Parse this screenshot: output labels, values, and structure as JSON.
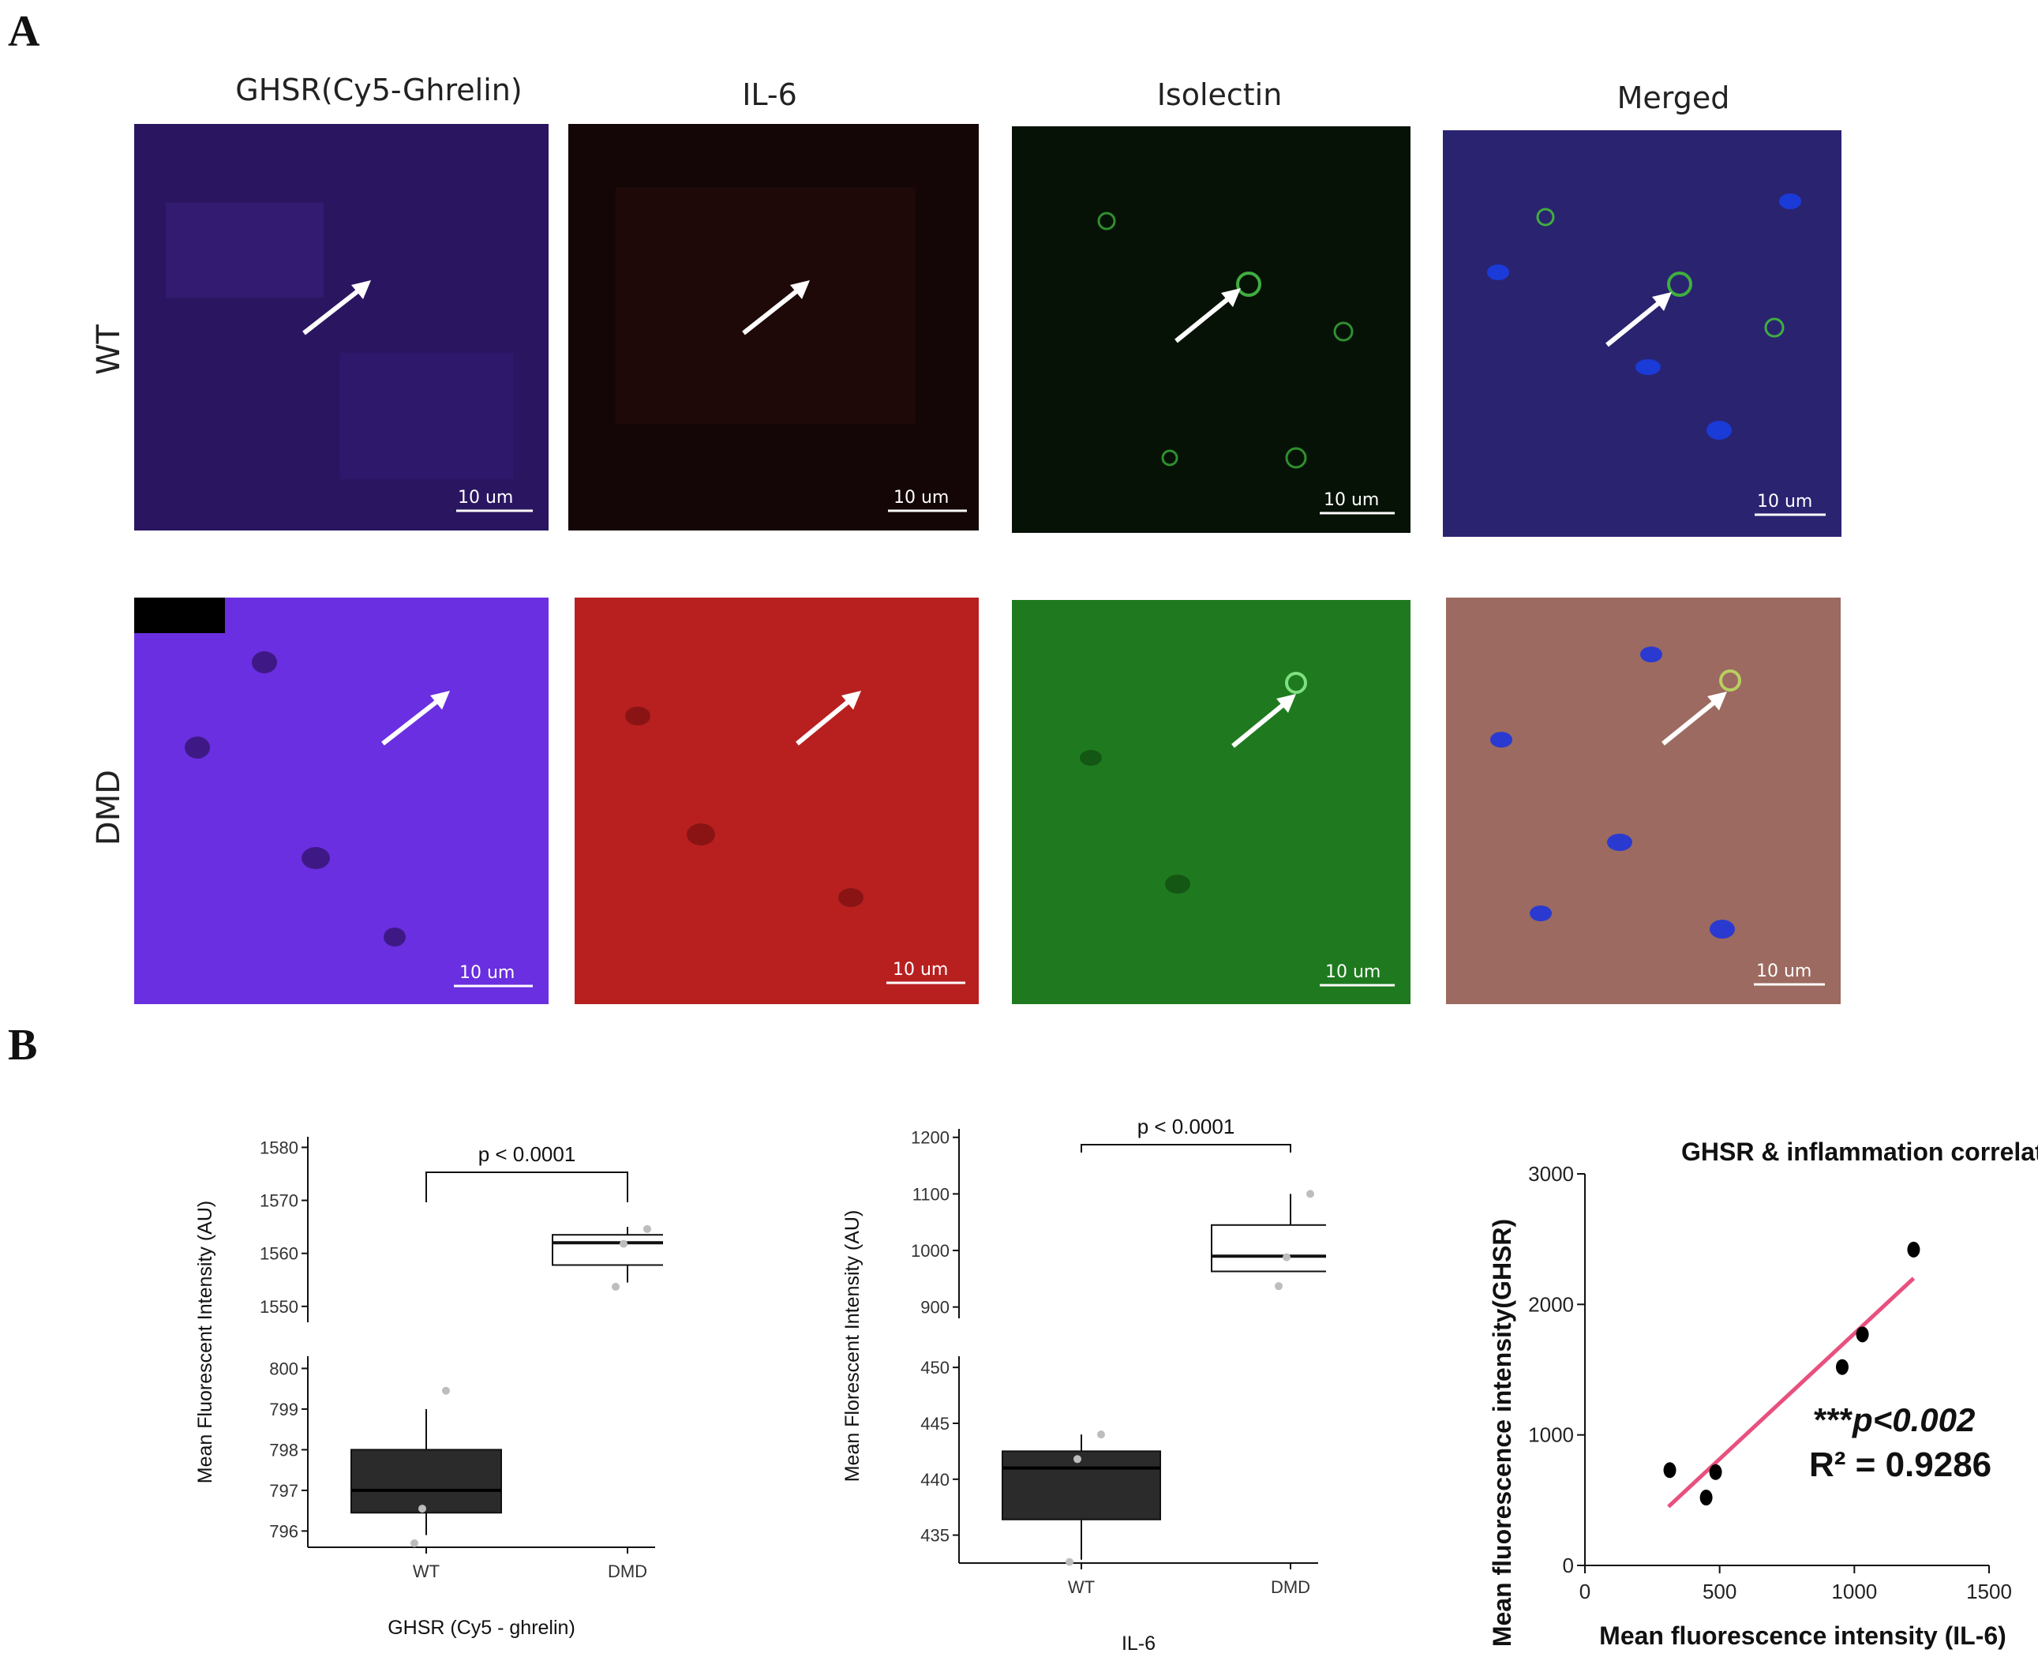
{
  "panel_a": {
    "letter": "A",
    "column_titles": [
      "GHSR(Cy5-Ghrelin)",
      "IL-6",
      "Isolectin",
      "Merged"
    ],
    "row_labels": [
      "WT",
      "DMD"
    ],
    "scale_bar_label": "10 um",
    "tile_colors": {
      "wt": [
        "#2a1660",
        "#140606",
        "#071207",
        "#2a2370"
      ],
      "dmd": [
        "#6a2fe0",
        "#b82020",
        "#1f7a1f",
        "#9c6a60"
      ]
    }
  },
  "panel_b": {
    "letter": "B"
  },
  "chart_data": [
    {
      "type": "box",
      "xlabel": "GHSR (Cy5 - ghrelin)",
      "ylabel": "Mean Fluorescent Intensity (AU)",
      "categories": [
        "WT",
        "DMD"
      ],
      "broken_axis": true,
      "upper_segment": {
        "ylim": [
          1547,
          1582
        ],
        "ticks": [
          1550,
          1560,
          1570,
          1580
        ]
      },
      "lower_segment": {
        "ylim": [
          795.6,
          800.3
        ],
        "ticks": [
          796,
          797,
          798,
          799,
          800
        ]
      },
      "boxes": [
        {
          "category": "WT",
          "min": 795.9,
          "q1": 796.45,
          "median": 797.0,
          "q3": 798.0,
          "max": 799.0,
          "points": [
            799.45,
            796.55,
            795.7
          ]
        },
        {
          "category": "DMD",
          "min": 1554.5,
          "q1": 1557.8,
          "median": 1562.0,
          "q3": 1563.5,
          "max": 1565.0,
          "points": [
            1564.6,
            1561.8,
            1553.7
          ]
        }
      ],
      "annotation": "p < 0.0001",
      "box_colors": [
        "#2b2b2b",
        "#ffffff"
      ]
    },
    {
      "type": "box",
      "xlabel": "IL-6",
      "ylabel": "Mean Florescent Intensity (AU)",
      "categories": [
        "WT",
        "DMD"
      ],
      "broken_axis": true,
      "upper_segment": {
        "ylim": [
          880,
          1215
        ],
        "ticks": [
          900,
          1000,
          1100,
          1200
        ]
      },
      "lower_segment": {
        "ylim": [
          432.5,
          451
        ],
        "ticks": [
          435,
          440,
          445,
          450
        ]
      },
      "boxes": [
        {
          "category": "WT",
          "min": 432.8,
          "q1": 436.4,
          "median": 441.0,
          "q3": 442.5,
          "max": 444.0,
          "points": [
            444.0,
            441.8,
            432.6
          ]
        },
        {
          "category": "DMD",
          "min": 963,
          "q1": 963,
          "median": 990,
          "q3": 1045,
          "max": 1100,
          "points": [
            1100,
            988,
            937
          ]
        }
      ],
      "annotation": "p < 0.0001",
      "box_colors": [
        "#2b2b2b",
        "#ffffff"
      ]
    },
    {
      "type": "scatter",
      "title": "GHSR & inflammation correlation",
      "xlabel": "Mean fluorescence intensity (IL-6)",
      "ylabel": "Mean fluorescence intensity(GHSR)",
      "xlim": [
        0,
        1500
      ],
      "ylim": [
        0,
        3000
      ],
      "xticks": [
        0,
        500,
        1000,
        1500
      ],
      "yticks": [
        0,
        1000,
        2000,
        3000
      ],
      "points": [
        {
          "x": 315,
          "y": 730
        },
        {
          "x": 450,
          "y": 520
        },
        {
          "x": 485,
          "y": 715
        },
        {
          "x": 955,
          "y": 1520
        },
        {
          "x": 1030,
          "y": 1770
        },
        {
          "x": 1220,
          "y": 2420
        }
      ],
      "trendline": {
        "x": [
          310,
          1220
        ],
        "y": [
          450,
          2200
        ],
        "color": "#e8507e"
      },
      "annotation_p_prefix": "***",
      "annotation_p": "p<0.002",
      "annotation_r2": "R² = 0.9286"
    }
  ]
}
